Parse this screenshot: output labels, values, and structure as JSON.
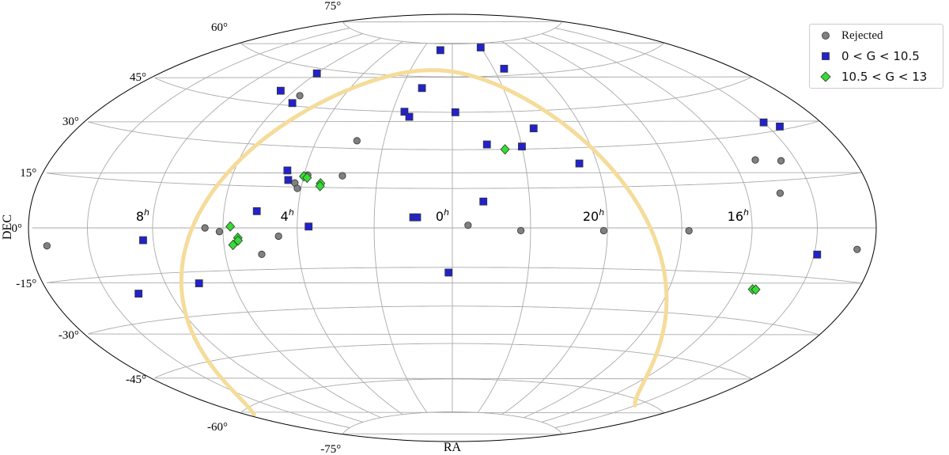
{
  "chart_data": {
    "type": "scatter",
    "projection": "aitoff-hammer-allsky",
    "xlabel": "RA",
    "ylabel": "DEC",
    "x_ticks": [
      {
        "ra_h": 8,
        "label": "8",
        "unit": "h"
      },
      {
        "ra_h": 4,
        "label": "4",
        "unit": "h"
      },
      {
        "ra_h": 0,
        "label": "0",
        "unit": "h"
      },
      {
        "ra_h": 20,
        "label": "20",
        "unit": "h"
      },
      {
        "ra_h": 16,
        "label": "16",
        "unit": "h"
      }
    ],
    "y_ticks": [
      {
        "dec": 75,
        "label": "75°"
      },
      {
        "dec": 60,
        "label": "60°"
      },
      {
        "dec": 45,
        "label": "45°"
      },
      {
        "dec": 30,
        "label": "30°"
      },
      {
        "dec": 15,
        "label": "15°"
      },
      {
        "dec": 0,
        "label": "0°"
      },
      {
        "dec": -15,
        "label": "-15°"
      },
      {
        "dec": -30,
        "label": "-30°"
      },
      {
        "dec": -45,
        "label": "-45°"
      },
      {
        "dec": -60,
        "label": "-60°"
      },
      {
        "dec": -75,
        "label": "-75°"
      }
    ],
    "grid": true,
    "legend_position": "top-right",
    "series": [
      {
        "name": "Rejected",
        "marker": "circle",
        "color": "#808080",
        "points": [
          {
            "ra_h": 11.4,
            "dec": -5.0
          },
          {
            "ra_h": 5.6,
            "dec": 49.0
          },
          {
            "ra_h": 2.8,
            "dec": 33.0
          },
          {
            "ra_h": 3.9,
            "dec": 19.5
          },
          {
            "ra_h": 4.2,
            "dec": 16.5
          },
          {
            "ra_h": 4.1,
            "dec": 14.5
          },
          {
            "ra_h": 2.95,
            "dec": 19.5
          },
          {
            "ra_h": 6.5,
            "dec": 0.0
          },
          {
            "ra_h": 6.1,
            "dec": -1.3
          },
          {
            "ra_h": 4.5,
            "dec": -3.0
          },
          {
            "ra_h": 5.0,
            "dec": -9.5
          },
          {
            "ra_h": 23.6,
            "dec": 1.0
          },
          {
            "ra_h": 22.25,
            "dec": -1.0
          },
          {
            "ra_h": 20.1,
            "dec": -1.0
          },
          {
            "ra_h": 17.8,
            "dec": -1.0
          },
          {
            "ra_h": 15.3,
            "dec": 22.0
          },
          {
            "ra_h": 14.5,
            "dec": 21.0
          },
          {
            "ra_h": 15.0,
            "dec": 11.0
          },
          {
            "ra_h": 12.6,
            "dec": -6.0
          }
        ]
      },
      {
        "name": "0 < G < 10.5",
        "marker": "square",
        "color": "#2222cc",
        "points": [
          {
            "ra_h": 0.8,
            "dec": 72.0
          },
          {
            "ra_h": 22.0,
            "dec": 73.0
          },
          {
            "ra_h": 6.0,
            "dec": 58.0
          },
          {
            "ra_h": 1.2,
            "dec": 55.0
          },
          {
            "ra_h": 21.5,
            "dec": 63.0
          },
          {
            "ra_h": 6.5,
            "dec": 50.0
          },
          {
            "ra_h": 5.6,
            "dec": 46.0
          },
          {
            "ra_h": 1.6,
            "dec": 45.0
          },
          {
            "ra_h": 1.4,
            "dec": 43.0
          },
          {
            "ra_h": 23.9,
            "dec": 45.0
          },
          {
            "ra_h": 21.5,
            "dec": 38.0
          },
          {
            "ra_h": 23.0,
            "dec": 32.0
          },
          {
            "ra_h": 22.0,
            "dec": 31.0
          },
          {
            "ra_h": 20.5,
            "dec": 24.0
          },
          {
            "ra_h": 14.0,
            "dec": 33.0
          },
          {
            "ra_h": 13.6,
            "dec": 31.0
          },
          {
            "ra_h": 4.5,
            "dec": 21.0
          },
          {
            "ra_h": 4.4,
            "dec": 17.5
          },
          {
            "ra_h": 23.2,
            "dec": 10.0
          },
          {
            "ra_h": 5.1,
            "dec": 6.0
          },
          {
            "ra_h": 1.0,
            "dec": 4.0
          },
          {
            "ra_h": 0.9,
            "dec": 4.0
          },
          {
            "ra_h": 3.7,
            "dec": 0.5
          },
          {
            "ra_h": 8.3,
            "dec": -4.0
          },
          {
            "ra_h": 0.1,
            "dec": -17.0
          },
          {
            "ra_h": 7.0,
            "dec": -19.0
          },
          {
            "ra_h": 9.0,
            "dec": -21.0
          },
          {
            "ra_h": 13.9,
            "dec": -8.0
          }
        ]
      },
      {
        "name": "10.5 < G < 13",
        "marker": "diamond",
        "color": "#33dd33",
        "points": [
          {
            "ra_h": 22.5,
            "dec": 30.0
          },
          {
            "ra_h": 4.0,
            "dec": 19.0
          },
          {
            "ra_h": 3.9,
            "dec": 18.5
          },
          {
            "ra_h": 3.5,
            "dec": 16.5
          },
          {
            "ra_h": 3.5,
            "dec": 15.5
          },
          {
            "ra_h": 5.8,
            "dec": 0.5
          },
          {
            "ra_h": 5.6,
            "dec": -3.5
          },
          {
            "ra_h": 5.6,
            "dec": -4.5
          },
          {
            "ra_h": 5.75,
            "dec": -6.0
          },
          {
            "ra_h": 15.5,
            "dec": -20.0
          },
          {
            "ra_h": 15.4,
            "dec": -20.0
          }
        ]
      }
    ],
    "galactic_plane_color": "#f5dc9a"
  },
  "legend": {
    "items": [
      {
        "text": "Rejected",
        "marker": "circle",
        "color": "#808080"
      },
      {
        "text": "0 < G < 10.5",
        "marker": "square",
        "color": "#2222cc"
      },
      {
        "text": "10.5 < G < 13",
        "marker": "diamond",
        "color": "#33dd33"
      }
    ]
  }
}
